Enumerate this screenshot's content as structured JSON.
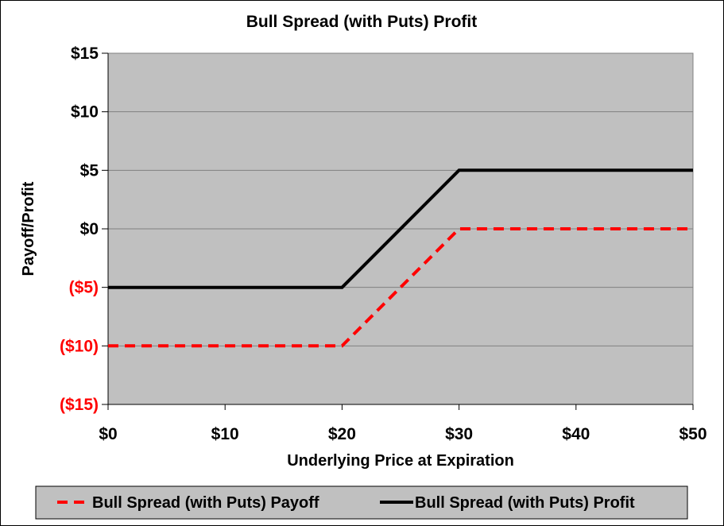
{
  "chart_data": {
    "type": "line",
    "title": "Bull Spread (with Puts) Profit",
    "xlabel": "Underlying Price at Expiration",
    "ylabel": "Payoff/Profit",
    "xlim": [
      0,
      50
    ],
    "ylim": [
      -15,
      15
    ],
    "x_ticks": [
      {
        "value": 0,
        "label": "$0"
      },
      {
        "value": 10,
        "label": "$10"
      },
      {
        "value": 20,
        "label": "$20"
      },
      {
        "value": 30,
        "label": "$30"
      },
      {
        "value": 40,
        "label": "$40"
      },
      {
        "value": 50,
        "label": "$50"
      }
    ],
    "y_ticks": [
      {
        "value": 15,
        "label": "$15",
        "color": "#000000"
      },
      {
        "value": 10,
        "label": "$10",
        "color": "#000000"
      },
      {
        "value": 5,
        "label": "$5",
        "color": "#000000"
      },
      {
        "value": 0,
        "label": "$0",
        "color": "#000000"
      },
      {
        "value": -5,
        "label": "($5)",
        "color": "#ff0000"
      },
      {
        "value": -10,
        "label": "($10)",
        "color": "#ff0000"
      },
      {
        "value": -15,
        "label": "($15)",
        "color": "#ff0000"
      }
    ],
    "grid": true,
    "plot_background": "#c0c0c0",
    "legend_position": "bottom",
    "series": [
      {
        "name": "Bull Spread (with Puts) Payoff",
        "color": "#ff0000",
        "style": "dashed",
        "x": [
          0,
          20,
          30,
          50
        ],
        "y": [
          -10,
          -10,
          0,
          0
        ]
      },
      {
        "name": "Bull Spread (with Puts) Profit",
        "color": "#000000",
        "style": "solid",
        "x": [
          0,
          20,
          30,
          50
        ],
        "y": [
          -5,
          -5,
          5,
          5
        ]
      }
    ]
  }
}
